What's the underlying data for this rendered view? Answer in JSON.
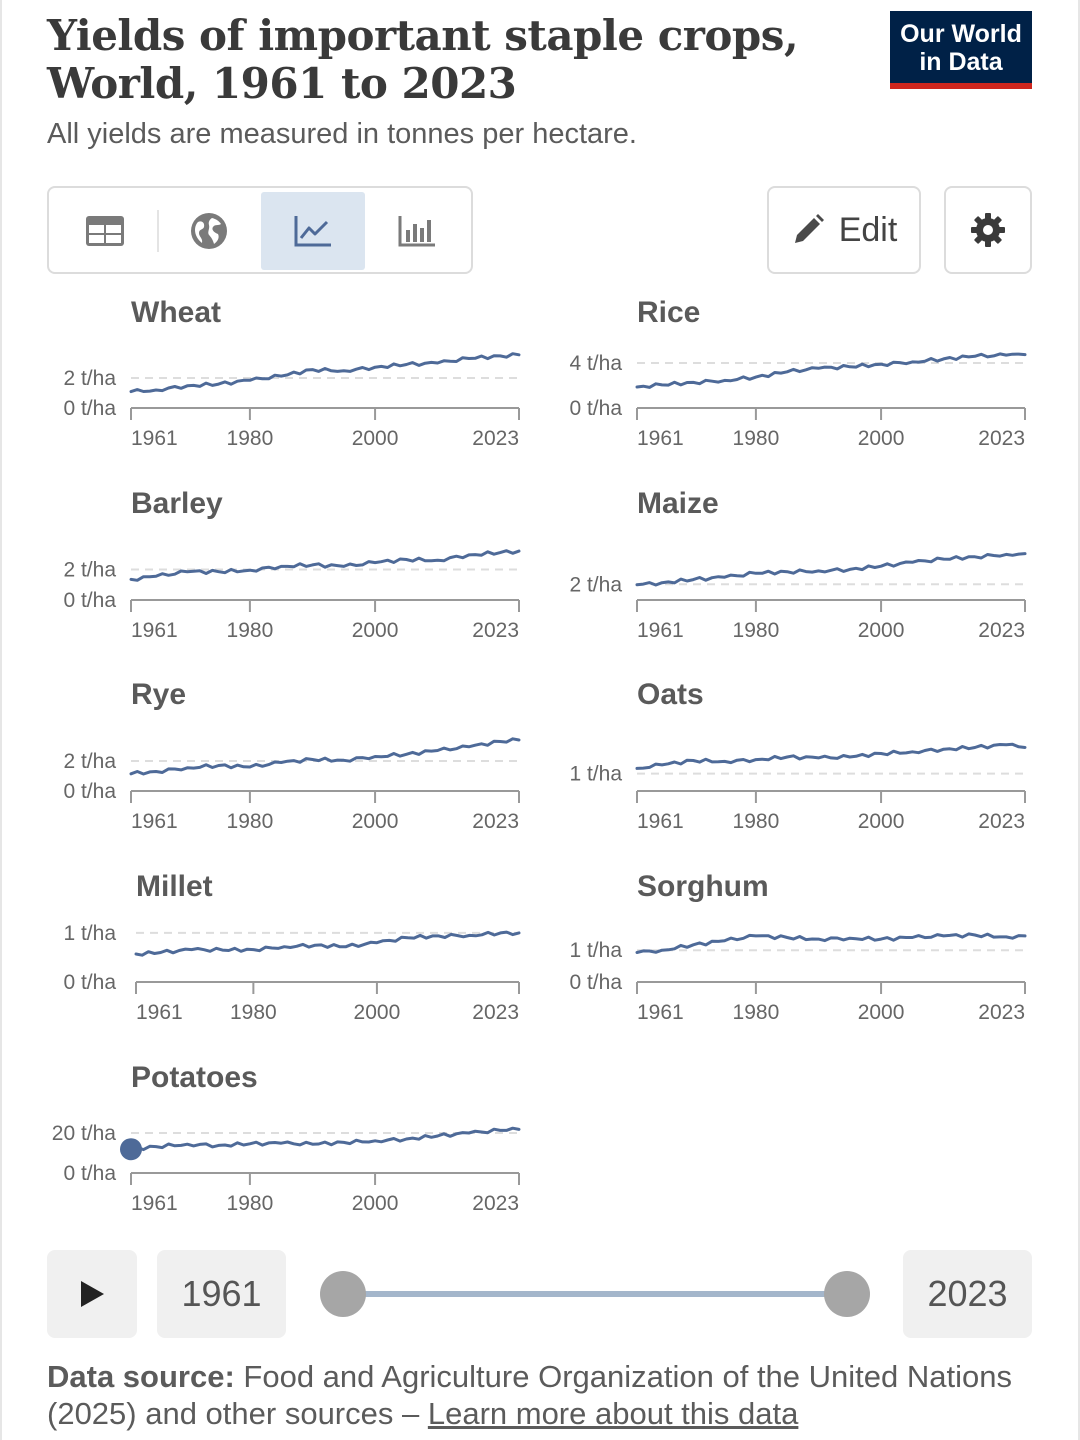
{
  "header": {
    "title_line1": "Yields of important staple crops,",
    "title_line2": "World, 1961 to 2023",
    "subtitle": "All yields are measured in tonnes per hectare.",
    "logo_line1": "Our World",
    "logo_line2": "in Data"
  },
  "toolbar": {
    "tabs": [
      {
        "icon": "table-icon",
        "selected": false
      },
      {
        "icon": "globe-icon",
        "selected": false
      },
      {
        "icon": "line-chart-icon",
        "selected": true
      },
      {
        "icon": "bar-chart-icon",
        "selected": false
      }
    ],
    "edit_label": "Edit",
    "settings_icon": "gear-icon"
  },
  "timeline": {
    "start_year": "1961",
    "end_year": "2023",
    "play_icon": "play-icon"
  },
  "footer": {
    "source_label": "Data source:",
    "source_text": " Food and Agriculture Organization of the United Nations (2025) and other sources – ",
    "learn_more": "Learn more about this data"
  },
  "colors": {
    "line": "#4e6a98",
    "grid": "#dddddd",
    "axis": "#999999",
    "logo_bg": "#002147",
    "logo_accent": "#ce261e",
    "active_tab": "#dbe5f0"
  },
  "chart_data": [
    {
      "type": "line",
      "title": "Wheat",
      "unit": "t/ha",
      "yticks": [
        0,
        2
      ],
      "ytick_labels": [
        "0 t/ha",
        "2 t/ha"
      ],
      "ylim": [
        0,
        3.6
      ],
      "xlim": [
        1961,
        2023
      ],
      "xticks": [
        1961,
        1980,
        2000,
        2023
      ],
      "x": [
        1961,
        1965,
        1970,
        1975,
        1980,
        1985,
        1990,
        1995,
        2000,
        2005,
        2010,
        2015,
        2020,
        2023
      ],
      "values": [
        1.09,
        1.2,
        1.48,
        1.59,
        1.85,
        2.13,
        2.56,
        2.48,
        2.72,
        2.9,
        3.0,
        3.3,
        3.47,
        3.55
      ]
    },
    {
      "type": "line",
      "title": "Rice",
      "unit": "t/ha",
      "yticks": [
        0,
        4
      ],
      "ytick_labels": [
        "0 t/ha",
        "4 t/ha"
      ],
      "ylim": [
        0,
        4.8
      ],
      "xlim": [
        1961,
        2023
      ],
      "xticks": [
        1961,
        1980,
        2000,
        2023
      ],
      "x": [
        1961,
        1965,
        1970,
        1975,
        1980,
        1985,
        1990,
        1995,
        2000,
        2005,
        2010,
        2015,
        2020,
        2023
      ],
      "values": [
        1.87,
        2.05,
        2.28,
        2.45,
        2.75,
        3.22,
        3.53,
        3.66,
        3.89,
        4.1,
        4.36,
        4.6,
        4.7,
        4.75
      ]
    },
    {
      "type": "line",
      "title": "Barley",
      "unit": "t/ha",
      "yticks": [
        0,
        2
      ],
      "ytick_labels": [
        "0 t/ha",
        "2 t/ha"
      ],
      "ylim": [
        0,
        3.6
      ],
      "xlim": [
        1961,
        2023
      ],
      "xticks": [
        1961,
        1980,
        2000,
        2023
      ],
      "x": [
        1961,
        1965,
        1970,
        1975,
        1980,
        1985,
        1990,
        1995,
        2000,
        2005,
        2010,
        2015,
        2020,
        2023
      ],
      "values": [
        1.35,
        1.55,
        1.85,
        1.85,
        1.95,
        2.2,
        2.3,
        2.2,
        2.45,
        2.65,
        2.6,
        2.95,
        3.1,
        3.2
      ]
    },
    {
      "type": "line",
      "title": "Maize",
      "unit": "t/ha",
      "yticks": [
        2
      ],
      "ytick_labels": [
        "2 t/ha"
      ],
      "ylim": [
        0,
        7
      ],
      "xlim": [
        1961,
        2023
      ],
      "xticks": [
        1961,
        1980,
        2000,
        2023
      ],
      "x": [
        1961,
        1965,
        1970,
        1975,
        1980,
        1985,
        1990,
        1995,
        2000,
        2005,
        2010,
        2015,
        2020,
        2023
      ],
      "values": [
        1.94,
        2.2,
        2.6,
        2.9,
        3.4,
        3.6,
        3.7,
        3.9,
        4.3,
        4.8,
        5.2,
        5.5,
        5.8,
        5.9
      ]
    },
    {
      "type": "line",
      "title": "Rye",
      "unit": "t/ha",
      "yticks": [
        0,
        2
      ],
      "ytick_labels": [
        "0 t/ha",
        "2 t/ha"
      ],
      "ylim": [
        0,
        3.6
      ],
      "xlim": [
        1961,
        2023
      ],
      "xticks": [
        1961,
        1980,
        2000,
        2023
      ],
      "x": [
        1961,
        1965,
        1970,
        1975,
        1980,
        1985,
        1990,
        1995,
        2000,
        2005,
        2010,
        2015,
        2020,
        2023
      ],
      "values": [
        1.15,
        1.3,
        1.55,
        1.7,
        1.6,
        1.9,
        2.1,
        2.05,
        2.3,
        2.45,
        2.7,
        2.95,
        3.3,
        3.4
      ]
    },
    {
      "type": "line",
      "title": "Oats",
      "unit": "t/ha",
      "yticks": [
        1
      ],
      "ytick_labels": [
        "1 t/ha"
      ],
      "ylim": [
        0,
        3.1
      ],
      "xlim": [
        1961,
        2023
      ],
      "xticks": [
        1961,
        1980,
        2000,
        2023
      ],
      "x": [
        1961,
        1965,
        1970,
        1975,
        1980,
        1985,
        1990,
        1995,
        2000,
        2005,
        2010,
        2015,
        2020,
        2023
      ],
      "values": [
        1.3,
        1.5,
        1.75,
        1.7,
        1.8,
        1.95,
        1.9,
        1.95,
        2.15,
        2.25,
        2.4,
        2.5,
        2.65,
        2.5
      ]
    },
    {
      "type": "line",
      "title": "Millet",
      "unit": "t/ha",
      "yticks": [
        0,
        1
      ],
      "ytick_labels": [
        "0 t/ha",
        "1 t/ha"
      ],
      "ylim": [
        0,
        1.1
      ],
      "xlim": [
        1961,
        2023
      ],
      "xticks": [
        1961,
        1980,
        2000,
        2023
      ],
      "x": [
        1961,
        1965,
        1970,
        1975,
        1980,
        1985,
        1990,
        1995,
        2000,
        2005,
        2010,
        2015,
        2020,
        2023
      ],
      "values": [
        0.57,
        0.6,
        0.66,
        0.65,
        0.66,
        0.72,
        0.75,
        0.72,
        0.8,
        0.9,
        0.94,
        0.95,
        1.0,
        1.0
      ]
    },
    {
      "type": "line",
      "title": "Sorghum",
      "unit": "t/ha",
      "yticks": [
        0,
        1
      ],
      "ytick_labels": [
        "0 t/ha",
        "1 t/ha"
      ],
      "ylim": [
        0,
        1.7
      ],
      "xlim": [
        1961,
        2023
      ],
      "xticks": [
        1961,
        1980,
        2000,
        2023
      ],
      "x": [
        1961,
        1965,
        1970,
        1975,
        1980,
        1985,
        1990,
        1995,
        2000,
        2005,
        2010,
        2015,
        2020,
        2023
      ],
      "values": [
        0.93,
        1.0,
        1.17,
        1.3,
        1.45,
        1.4,
        1.35,
        1.38,
        1.35,
        1.4,
        1.45,
        1.48,
        1.42,
        1.45
      ]
    },
    {
      "type": "line",
      "title": "Potatoes",
      "unit": "t/ha",
      "yticks": [
        0,
        20
      ],
      "ytick_labels": [
        "0 t/ha",
        "20 t/ha"
      ],
      "ylim": [
        0,
        27
      ],
      "xlim": [
        1961,
        2023
      ],
      "xticks": [
        1961,
        1980,
        2000,
        2023
      ],
      "x": [
        1961,
        1965,
        1970,
        1975,
        1980,
        1985,
        1990,
        1995,
        2000,
        2005,
        2010,
        2015,
        2020,
        2023
      ],
      "values": [
        11.9,
        13.2,
        14.4,
        13.8,
        14.6,
        14.9,
        14.4,
        15.3,
        16.1,
        17.0,
        18.5,
        20.0,
        21.3,
        21.8
      ],
      "highlight_point": {
        "x": 1961,
        "value": 11.9
      }
    }
  ]
}
